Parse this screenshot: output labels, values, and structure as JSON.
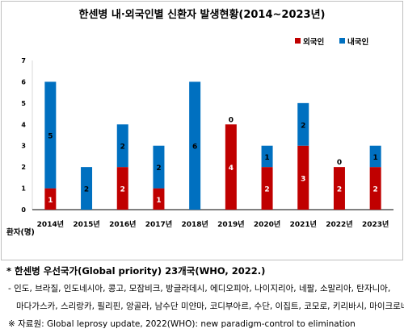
{
  "title": "한센병 내·외국인별 신환자 발생현황(2014~2023년)",
  "colors": {
    "foreign": "#c00000",
    "domestic": "#0070c0",
    "axis": "#000000"
  },
  "chart_data": {
    "type": "bar",
    "stacked": true,
    "title": "한센병 내·외국인별 신환자 발생현황(2014~2023년)",
    "categories": [
      "2014년",
      "2015년",
      "2016년",
      "2017년",
      "2018년",
      "2019년",
      "2020년",
      "2021년",
      "2022년",
      "2023년"
    ],
    "series": [
      {
        "name": "외국인",
        "color": "#c00000",
        "values": [
          1,
          0,
          2,
          1,
          0,
          4,
          2,
          3,
          2,
          2
        ]
      },
      {
        "name": "내국인",
        "color": "#0070c0",
        "values": [
          5,
          2,
          2,
          2,
          6,
          0,
          1,
          2,
          0,
          1
        ]
      }
    ],
    "yticks": [
      "0",
      "1",
      "2",
      "3",
      "4",
      "5",
      "6",
      "7"
    ],
    "ylim": [
      0,
      7
    ],
    "ylabel": "환자(명)",
    "xlabel": "",
    "legend": "top-right",
    "grid": false
  },
  "notes": {
    "heading": "* 한센병 우선국가(Global priority) 23개국(WHO, 2022.)",
    "countries_line1": "- 인도, 브라질, 인도네시아, 콩고, 모잠비크, 방글라데시, 에디오피아, 나이지리아, 네팔, 소말리아, 탄자니아,",
    "countries_line2": "마다가스카, 스리랑카, 필리핀, 앙골라, 남수단 미얀마, 코디부아르, 수단, 이집트, 코모로, 키리바시, 마이크로네시아",
    "source": "※ 자료원: Global leprosy update, 2022(WHO): new paradigm-control to elimination"
  }
}
